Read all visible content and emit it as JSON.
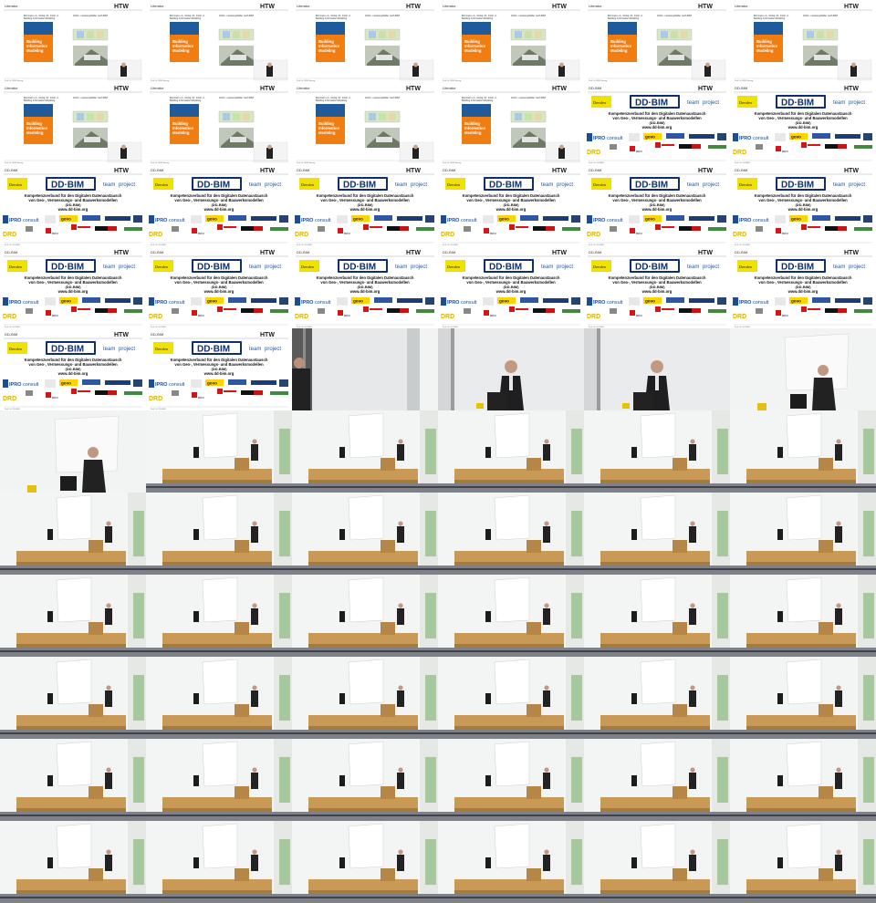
{
  "frames": [
    "lit",
    "lit",
    "lit",
    "lit",
    "lit",
    "lit",
    "lit",
    "lit",
    "lit",
    "lit",
    "dd",
    "dd",
    "dd",
    "dd",
    "dd",
    "dd",
    "dd",
    "dd",
    "dd",
    "dd",
    "dd",
    "dd",
    "dd",
    "dd",
    "dd",
    "dd",
    "hall1",
    "hall2",
    "hall2",
    "hall3",
    "hall3",
    "stage1",
    "stage1",
    "stage1",
    "stage1",
    "stage1",
    "stage1",
    "stage1",
    "stage1",
    "stage1",
    "stage1",
    "stage1",
    "stage1",
    "stage1",
    "stage1",
    "stage1",
    "stage1",
    "stage1",
    "stage1",
    "stage1",
    "stage1",
    "stage1",
    "stage1",
    "stage1",
    "stage1",
    "stage1",
    "stage1",
    "stage1",
    "stage1",
    "stage1",
    "stage1",
    "stage1",
    "stage1",
    "stage1",
    "stage1",
    "stage1"
  ],
  "literature": {
    "header_left": "Literatur",
    "header_right": "HTW",
    "book_title_1": "Building",
    "book_title_2": "Information",
    "book_title_3": "Modeling",
    "book_caption_1": "Borrmann, A.; König, M.; Koch, C.",
    "book_caption_2": "Building Information Modeling",
    "side_caption": "HOAI - Leistungsbilder nach BIM",
    "footer_text": "Prof. Dr. BIM Vortrag"
  },
  "ddbim": {
    "header_left": "DD-BIM",
    "header_right": "HTW",
    "logo_left": "Dresden",
    "logo_center": "DD·BIM",
    "logo_right_1": "team",
    "logo_right_2": "project",
    "headline_1": "Kompetenzverbund für den Digitalen Datenaustausch",
    "headline_2": "von Geo-, Vermessungs- und Bauwerksmodellen",
    "headline_3": "(DD-BIM)",
    "url": "www.dd-bim.org",
    "partner_ipro_1": "IPRO",
    "partner_ipro_2": "consult",
    "partner_gova": "govo",
    "partner_drd": "DRD",
    "partner_bdvi": "BDVI",
    "footer_text": "Prof. Dr. DD-BIM"
  }
}
